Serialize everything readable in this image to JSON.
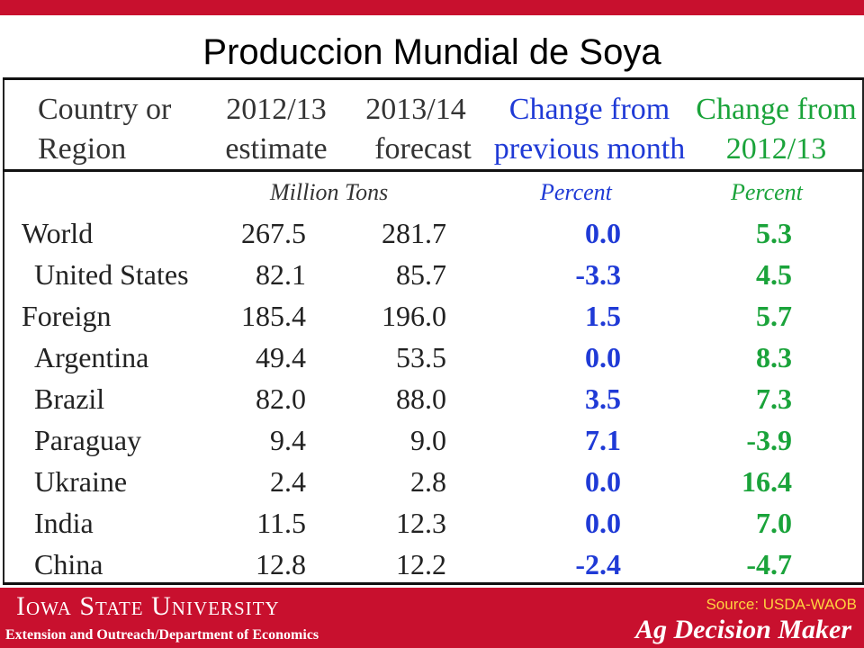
{
  "title": "Produccion Mundial de Soya",
  "headers": {
    "country": [
      "Country or",
      "Region"
    ],
    "year1": [
      "2012/13",
      "estimate"
    ],
    "year2": [
      "2013/14",
      "forecast"
    ],
    "change_month": [
      "Change from",
      "previous month"
    ],
    "change_year": [
      "Change from",
      "2012/13"
    ]
  },
  "units": {
    "tons": "Million Tons",
    "pct_month": "Percent",
    "pct_year": "Percent"
  },
  "rows": [
    {
      "name": "World",
      "y1": "267.5",
      "y2": "281.7",
      "chg_month": "0.0",
      "chg_year": "5.3"
    },
    {
      "name": "United States",
      "y1": "82.1",
      "y2": "85.7",
      "chg_month": "-3.3",
      "chg_year": "4.5"
    },
    {
      "name": "Foreign",
      "y1": "185.4",
      "y2": "196.0",
      "chg_month": "1.5",
      "chg_year": "5.7"
    },
    {
      "name": "Argentina",
      "y1": "49.4",
      "y2": "53.5",
      "chg_month": "0.0",
      "chg_year": "8.3"
    },
    {
      "name": "Brazil",
      "y1": "82.0",
      "y2": "88.0",
      "chg_month": "3.5",
      "chg_year": "7.3"
    },
    {
      "name": "Paraguay",
      "y1": "9.4",
      "y2": "9.0",
      "chg_month": "7.1",
      "chg_year": "-3.9"
    },
    {
      "name": "Ukraine",
      "y1": "2.4",
      "y2": "2.8",
      "chg_month": "0.0",
      "chg_year": "16.4"
    },
    {
      "name": "India",
      "y1": "11.5",
      "y2": "12.3",
      "chg_month": "0.0",
      "chg_year": "7.0"
    },
    {
      "name": "China",
      "y1": "12.8",
      "y2": "12.2",
      "chg_month": "-2.4",
      "chg_year": "-4.7"
    }
  ],
  "footer": {
    "university": "Iowa State University",
    "department": "Extension and Outreach/Department  of Economics",
    "source": "Source: USDA-WAOB",
    "brand": "Ag Decision Maker"
  },
  "colors": {
    "brand_red": "#c8102e",
    "change_month": "#1f3ad6",
    "change_year": "#1aa33a",
    "source_text": "#ffd23f"
  }
}
